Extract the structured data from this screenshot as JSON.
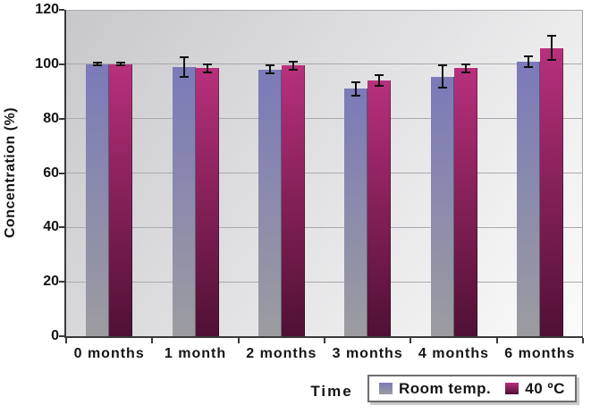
{
  "chart_data": {
    "type": "bar",
    "title": "",
    "xlabel": "Time",
    "ylabel": "Concentration (%)",
    "ylim": [
      0,
      120
    ],
    "yticks": [
      0,
      20,
      40,
      60,
      80,
      100,
      120
    ],
    "grid": true,
    "legend_position": "bottom-right",
    "categories": [
      "0 months",
      "1 month",
      "2 months",
      "3 months",
      "4 months",
      "6 months"
    ],
    "series": [
      {
        "name": "Room temp.",
        "values": [
          100,
          99,
          98,
          91,
          95.5,
          101
        ],
        "errors": [
          0.5,
          3.5,
          1.5,
          2.5,
          4,
          2
        ],
        "color_top": "#7b7ab9",
        "color_bottom": "#9c9ca0"
      },
      {
        "name": "40 ºC",
        "values": [
          100,
          98.5,
          99.5,
          94,
          98.5,
          106
        ],
        "errors": [
          0.5,
          1.5,
          1.5,
          2,
          1.5,
          4.5
        ],
        "color_top": "#b8307d",
        "color_bottom": "#501034"
      }
    ]
  },
  "colors": {
    "plot_bg_start": "#c8c8ca",
    "plot_bg_mid": "#e2e2e4",
    "plot_bg_end": "#fbfbfb",
    "gridline": "#aaaaae",
    "axis": "#3a3a3a",
    "border": "#a2a2a6",
    "error_bar": "#101010",
    "text": "#141414"
  }
}
